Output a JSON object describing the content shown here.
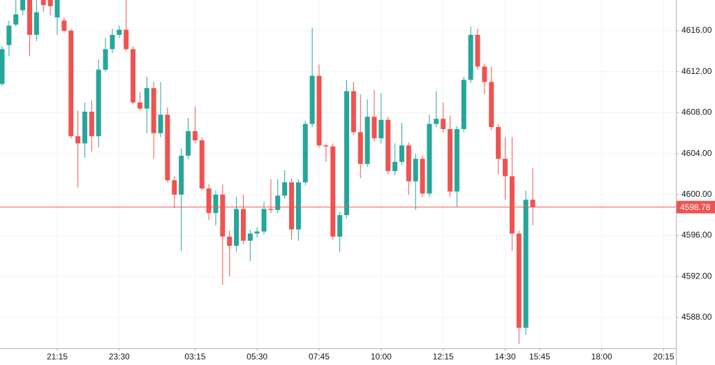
{
  "chart_data": {
    "type": "candlestick",
    "up_color": "#26a69a",
    "down_color": "#ef5350",
    "grid": true,
    "ylim": [
      4585,
      4619
    ],
    "yticks": [
      {
        "value": 4588,
        "label": "4588.00"
      },
      {
        "value": 4592,
        "label": "4592.00"
      },
      {
        "value": 4596,
        "label": "4596.00"
      },
      {
        "value": 4600,
        "label": "4600.00"
      },
      {
        "value": 4604,
        "label": "4604.00"
      },
      {
        "value": 4608,
        "label": "4608.00"
      },
      {
        "value": 4612,
        "label": "4612.00"
      },
      {
        "value": 4616,
        "label": "4616.00"
      }
    ],
    "categories": [
      null,
      null,
      null,
      null,
      null,
      null,
      null,
      null,
      "21:15",
      null,
      null,
      null,
      null,
      null,
      null,
      null,
      null,
      "23:30",
      null,
      null,
      null,
      null,
      null,
      null,
      null,
      null,
      null,
      null,
      "03:15",
      null,
      null,
      null,
      null,
      null,
      null,
      null,
      null,
      "05:30",
      null,
      null,
      null,
      null,
      null,
      null,
      null,
      null,
      "07:45",
      null,
      null,
      null,
      null,
      null,
      null,
      null,
      null,
      "10:00",
      null,
      null,
      null,
      null,
      null,
      null,
      null,
      null,
      "12:15",
      null,
      null,
      null,
      null,
      null,
      null,
      null,
      null,
      "14:30",
      null,
      null,
      null,
      null,
      "15:45",
      null,
      null,
      null,
      null,
      null,
      null,
      null,
      null,
      "18:00",
      null,
      null,
      null,
      null,
      null,
      null,
      null,
      null,
      "20:15",
      null
    ],
    "open": [
      4610.8,
      4614.6,
      4616.6,
      4618.0,
      4619.0,
      4615.6,
      4619.0,
      4619.0,
      4617.3,
      4617.0,
      4616.0,
      4605.7,
      4605.0,
      4608.1,
      4605.7,
      4612.2,
      4614.2,
      4615.6,
      4616.1,
      4614.2,
      4609.0,
      4608.4,
      4610.4,
      4606.0,
      4607.8,
      4601.4,
      4600.0,
      4603.8,
      4606.2,
      4605.3,
      4600.6,
      4598.2,
      4600.0,
      4595.9,
      4595.0,
      4598.6,
      4595.5,
      4596.2,
      4596.4,
      4598.6,
      4598.5,
      4599.9,
      4601.2,
      4596.6,
      4601.2,
      4606.9,
      4611.6,
      4604.8,
      4604.7,
      4595.9,
      4598.0,
      4610.1,
      4606.1,
      4603.0,
      4607.6,
      4605.5,
      4607.3,
      4602.3,
      4603.2,
      4604.8,
      4601.3,
      4603.5,
      4600.1,
      4606.9,
      4607.4,
      4606.4,
      4600.3,
      4606.4,
      4611.2,
      4615.6,
      4612.5,
      4611.0,
      4606.6,
      4603.5,
      4601.8,
      4596.2,
      4587.0,
      4599.5,
      null,
      null,
      null,
      null,
      null,
      null,
      null,
      null,
      null,
      null,
      null,
      null,
      null,
      null,
      null,
      null,
      null,
      null,
      null,
      null
    ],
    "high": [
      4614.5,
      4617.0,
      4619.0,
      4619.0,
      4619.0,
      4619.0,
      4619.0,
      4619.0,
      4619.0,
      4617.3,
      4616.2,
      4608.2,
      4609.0,
      4609.2,
      4613.2,
      4615.3,
      4616.2,
      4616.5,
      4619.0,
      4614.5,
      4610.0,
      4611.5,
      4611.0,
      4611.0,
      4608.5,
      4601.8,
      4604.5,
      4607.5,
      4608.6,
      4605.6,
      4601.0,
      4600.4,
      4601.0,
      4596.5,
      4599.8,
      4600.0,
      4596.6,
      4596.8,
      4599.3,
      4601.5,
      4601.5,
      4602.4,
      4601.6,
      4601.5,
      4607.2,
      4616.3,
      4612.7,
      4605.0,
      4605.0,
      4598.3,
      4611.2,
      4611.0,
      4609.8,
      4609.3,
      4610.2,
      4609.9,
      4607.6,
      4605.0,
      4607.0,
      4605.1,
      4604.0,
      4603.8,
      4607.8,
      4610.1,
      4609.0,
      4607.7,
      4606.7,
      4611.5,
      4616.4,
      4616.2,
      4612.8,
      4612.5,
      4606.9,
      4605.6,
      4605.6,
      4596.5,
      4600.4,
      4602.6,
      null,
      null,
      null,
      null,
      null,
      null,
      null,
      null,
      null,
      null,
      null,
      null,
      null,
      null,
      null,
      null,
      null,
      null,
      null,
      null
    ],
    "low": [
      4610.6,
      4613.5,
      4616.4,
      4617.5,
      4613.5,
      4615.0,
      4617.8,
      4617.5,
      4615.6,
      4615.8,
      4605.5,
      4600.7,
      4603.6,
      4604.2,
      4604.6,
      4612.0,
      4613.8,
      4615.3,
      4614.0,
      4608.8,
      4608.2,
      4606.0,
      4603.5,
      4605.6,
      4601.2,
      4598.7,
      4594.5,
      4603.5,
      4605.0,
      4600.4,
      4597.5,
      4597.0,
      4591.2,
      4592.0,
      4594.4,
      4595.2,
      4593.5,
      4595.8,
      4596.1,
      4598.2,
      4598.2,
      4599.6,
      4595.6,
      4595.5,
      4600.9,
      4606.6,
      4604.6,
      4603.2,
      4595.6,
      4594.4,
      4597.7,
      4605.8,
      4601.6,
      4602.7,
      4605.2,
      4605.0,
      4602.0,
      4601.9,
      4602.9,
      4600.0,
      4598.5,
      4599.8,
      4599.8,
      4606.6,
      4606.1,
      4599.8,
      4598.8,
      4606.1,
      4610.9,
      4612.2,
      4609.8,
      4606.3,
      4602.0,
      4599.5,
      4594.5,
      4585.4,
      4586.3,
      4597.0,
      null,
      null,
      null,
      null,
      null,
      null,
      null,
      null,
      null,
      null,
      null,
      null,
      null,
      null,
      null,
      null,
      null,
      null,
      null,
      null
    ],
    "close": [
      4614.2,
      4616.5,
      4617.6,
      4619.0,
      4615.6,
      4617.8,
      4618.5,
      4618.4,
      4619.0,
      4616.0,
      4605.7,
      4605.0,
      4608.1,
      4605.7,
      4612.2,
      4614.2,
      4615.6,
      4616.1,
      4614.2,
      4609.0,
      4608.4,
      4610.4,
      4606.0,
      4607.8,
      4601.4,
      4600.0,
      4603.8,
      4606.2,
      4605.3,
      4600.6,
      4598.2,
      4600.0,
      4595.9,
      4595.0,
      4598.6,
      4595.5,
      4596.2,
      4596.4,
      4598.6,
      4598.5,
      4599.9,
      4601.2,
      4596.6,
      4601.2,
      4606.9,
      4611.6,
      4604.8,
      4604.7,
      4595.9,
      4598.0,
      4610.1,
      4606.1,
      4603.0,
      4607.6,
      4605.5,
      4607.3,
      4602.3,
      4603.2,
      4604.8,
      4601.3,
      4603.5,
      4600.1,
      4606.9,
      4607.4,
      4606.4,
      4600.3,
      4606.4,
      4611.2,
      4615.6,
      4612.5,
      4611.0,
      4606.6,
      4603.5,
      4601.8,
      4596.2,
      4587.0,
      4599.5,
      4598.78,
      null,
      null,
      null,
      null,
      null,
      null,
      null,
      null,
      null,
      null,
      null,
      null,
      null,
      null,
      null,
      null,
      null,
      null,
      null,
      null
    ]
  }
}
